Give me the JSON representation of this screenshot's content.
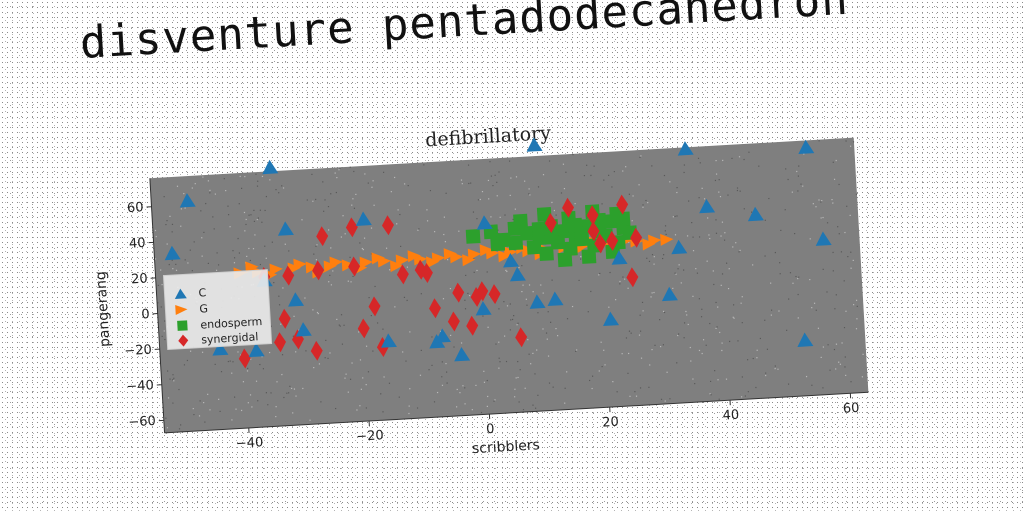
{
  "banner_text": "disventure pentadodecahedron",
  "chart_data": {
    "type": "scatter",
    "title": "defibrillatory",
    "xlabel": "scribblers",
    "ylabel": "pangerang",
    "xlim": [
      -54,
      63
    ],
    "ylim": [
      -67,
      76
    ],
    "xticks": [
      -40,
      -20,
      0,
      20,
      40,
      60
    ],
    "yticks": [
      -60,
      -40,
      -20,
      0,
      20,
      40,
      60
    ],
    "xtick_labels": [
      "−40",
      "−20",
      "0",
      "20",
      "40",
      "60"
    ],
    "ytick_labels": [
      "−60",
      "−40",
      "−20",
      "0",
      "20",
      "40",
      "60"
    ],
    "grid": false,
    "legend_position": "center-left",
    "plot_background": "#7f7f7f",
    "series": [
      {
        "name": "C",
        "marker": "triangle-up",
        "color": "#1f77b4",
        "points": [
          [
            -48,
            62
          ],
          [
            -34,
            78
          ],
          [
            -51,
            33
          ],
          [
            -32,
            43
          ],
          [
            -44,
            -22
          ],
          [
            -31,
            3
          ],
          [
            -30,
            -14
          ],
          [
            -36,
            15
          ],
          [
            -38,
            -24
          ],
          [
            -19,
            46
          ],
          [
            -16,
            -23
          ],
          [
            -8,
            -25
          ],
          [
            -7,
            -22
          ],
          [
            -4,
            -33
          ],
          [
            0,
            -8
          ],
          [
            1,
            40
          ],
          [
            5,
            18
          ],
          [
            6,
            10
          ],
          [
            9,
            -6
          ],
          [
            10,
            82
          ],
          [
            12,
            -5
          ],
          [
            21,
            -18
          ],
          [
            23,
            16
          ],
          [
            31,
            -6
          ],
          [
            35,
            75
          ],
          [
            33,
            20
          ],
          [
            38,
            42
          ],
          [
            46,
            36
          ],
          [
            55,
            72
          ],
          [
            57,
            20
          ],
          [
            53,
            -36
          ]
        ]
      },
      {
        "name": "G",
        "marker": "triangle-right",
        "color": "#ff7f0e",
        "points": [
          [
            -40,
            20
          ],
          [
            -37,
            20
          ],
          [
            -34,
            21
          ],
          [
            -31,
            21
          ],
          [
            -28,
            21
          ],
          [
            -25,
            21
          ],
          [
            -22,
            21
          ],
          [
            -19,
            22
          ],
          [
            -16,
            22
          ],
          [
            -13,
            22
          ],
          [
            -10,
            22
          ],
          [
            -7,
            22
          ],
          [
            -4,
            22
          ],
          [
            -1,
            23
          ],
          [
            2,
            23
          ],
          [
            5,
            23
          ],
          [
            8,
            23
          ],
          [
            11,
            23
          ],
          [
            14,
            24
          ],
          [
            17,
            24
          ],
          [
            20,
            24
          ],
          [
            23,
            24
          ],
          [
            26,
            25
          ],
          [
            29,
            25
          ],
          [
            31,
            25
          ],
          [
            -38,
            23
          ],
          [
            -35,
            18
          ],
          [
            -30,
            23
          ],
          [
            -27,
            18
          ],
          [
            -24,
            23
          ],
          [
            -20,
            19
          ],
          [
            -17,
            24
          ],
          [
            -14,
            19
          ],
          [
            -11,
            24
          ],
          [
            -8,
            20
          ],
          [
            -5,
            24
          ],
          [
            -2,
            20
          ],
          [
            1,
            25
          ],
          [
            4,
            21
          ],
          [
            7,
            25
          ],
          [
            10,
            21
          ],
          [
            13,
            26
          ],
          [
            16,
            22
          ],
          [
            19,
            26
          ],
          [
            22,
            22
          ],
          [
            25,
            27
          ],
          [
            28,
            23
          ]
        ]
      },
      {
        "name": "endosperm",
        "marker": "square",
        "color": "#2ca02c",
        "points": [
          [
            -1,
            33
          ],
          [
            2,
            35
          ],
          [
            4,
            30
          ],
          [
            6,
            36
          ],
          [
            8,
            33
          ],
          [
            10,
            30
          ],
          [
            12,
            36
          ],
          [
            14,
            33
          ],
          [
            16,
            29
          ],
          [
            18,
            35
          ],
          [
            20,
            32
          ],
          [
            22,
            37
          ],
          [
            24,
            33
          ],
          [
            9,
            25
          ],
          [
            11,
            21
          ],
          [
            13,
            27
          ],
          [
            15,
            23
          ],
          [
            17,
            28
          ],
          [
            19,
            24
          ],
          [
            21,
            29
          ],
          [
            23,
            25
          ],
          [
            25,
            30
          ],
          [
            7,
            40
          ],
          [
            11,
            43
          ],
          [
            15,
            40
          ],
          [
            19,
            43
          ],
          [
            23,
            41
          ],
          [
            3,
            28
          ],
          [
            14,
            17
          ],
          [
            18,
            18
          ],
          [
            22,
            20
          ],
          [
            10,
            35
          ],
          [
            16,
            36
          ],
          [
            20,
            38
          ],
          [
            12,
            30
          ],
          [
            6,
            28
          ],
          [
            24,
            38
          ],
          [
            17,
            31
          ]
        ]
      },
      {
        "name": "synergidal",
        "marker": "diamond",
        "color": "#d62728",
        "points": [
          [
            -36,
            17
          ],
          [
            -32,
            17
          ],
          [
            -27,
            19
          ],
          [
            -26,
            38
          ],
          [
            -21,
            42
          ],
          [
            -21,
            20
          ],
          [
            -15,
            42
          ],
          [
            -13,
            14
          ],
          [
            -10,
            16
          ],
          [
            -9,
            14
          ],
          [
            -18,
            -3
          ],
          [
            -20,
            -15
          ],
          [
            -17,
            -26
          ],
          [
            -8,
            -6
          ],
          [
            -5,
            -14
          ],
          [
            -4,
            2
          ],
          [
            -1,
            -1
          ],
          [
            -28,
            -26
          ],
          [
            -33,
            -7
          ],
          [
            -34,
            -20
          ],
          [
            -40,
            -28
          ],
          [
            -31,
            -19
          ],
          [
            6,
            -25
          ],
          [
            12,
            38
          ],
          [
            15,
            46
          ],
          [
            19,
            41
          ],
          [
            20,
            25
          ],
          [
            22,
            26
          ],
          [
            24,
            46
          ],
          [
            26,
            27
          ],
          [
            25,
            5
          ],
          [
            19,
            32
          ],
          [
            0,
            2
          ],
          [
            2,
            0
          ],
          [
            -2,
            -17
          ]
        ]
      }
    ]
  }
}
